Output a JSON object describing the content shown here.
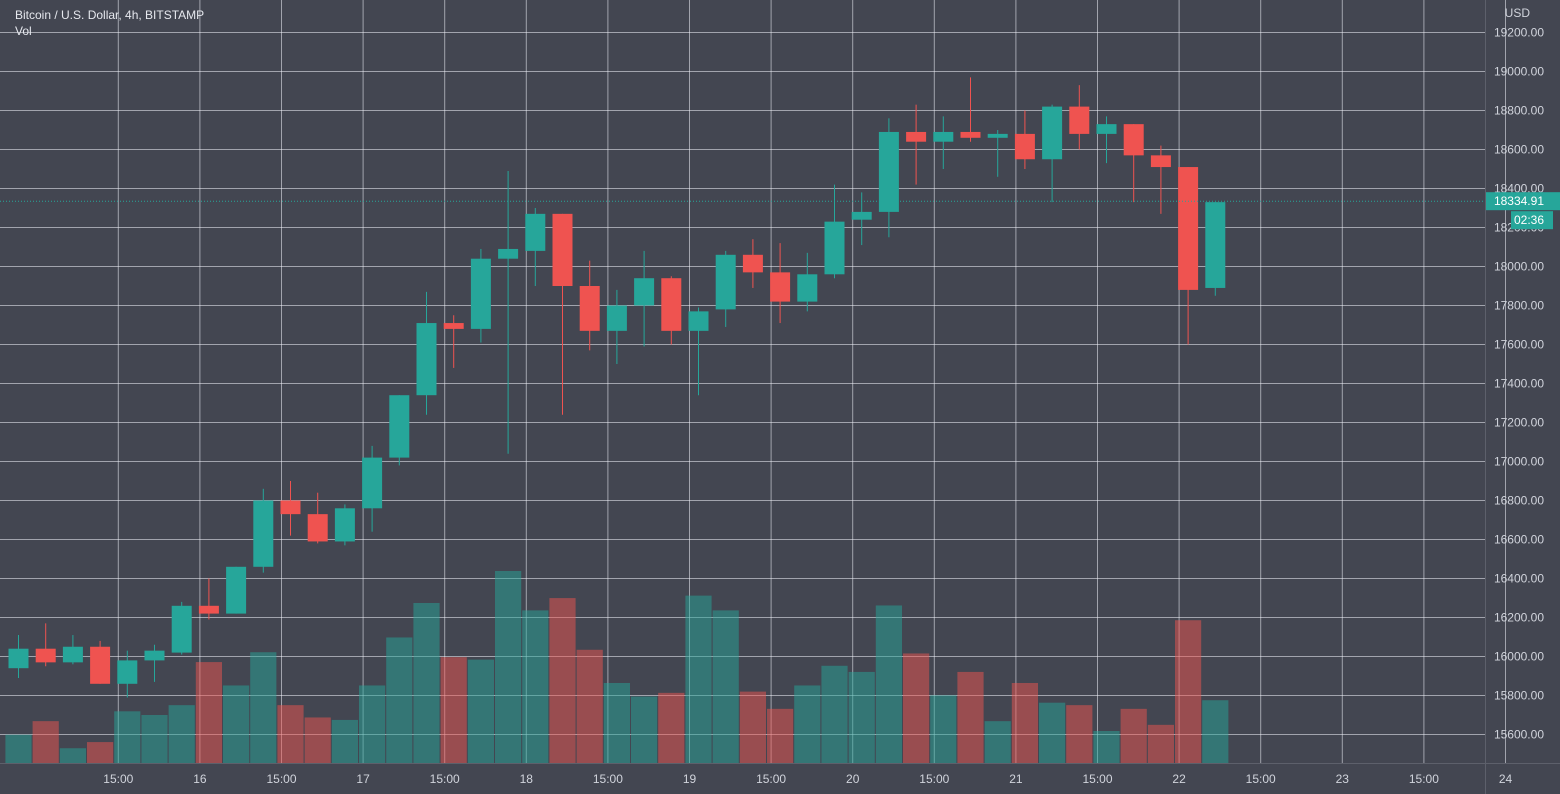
{
  "chart_data": {
    "type": "candlestick",
    "title": "Bitcoin / U.S. Dollar, 4h, BITSTAMP",
    "volume_label": "Vol",
    "currency": "USD",
    "ylim": [
      15480,
      19340
    ],
    "y_ticks": [
      15600,
      15800,
      16000,
      16200,
      16400,
      16600,
      16800,
      17000,
      17200,
      17400,
      17600,
      17800,
      18000,
      18200,
      18400,
      18600,
      18800,
      19000,
      19200
    ],
    "y_tick_labels": [
      "15600.00",
      "15800.00",
      "16000.00",
      "16200.00",
      "16400.00",
      "16600.00",
      "16800.00",
      "17000.00",
      "17200.00",
      "17400.00",
      "17600.00",
      "17800.00",
      "18000.00",
      "18200.00",
      "18400.00",
      "18600.00",
      "18800.00",
      "19000.00",
      "19200.00"
    ],
    "x_labels": [
      {
        "label": "15:00",
        "slot": 2
      },
      {
        "label": "16",
        "slot": 5
      },
      {
        "label": "15:00",
        "slot": 8
      },
      {
        "label": "17",
        "slot": 11
      },
      {
        "label": "15:00",
        "slot": 14
      },
      {
        "label": "18",
        "slot": 17
      },
      {
        "label": "15:00",
        "slot": 20
      },
      {
        "label": "19",
        "slot": 23
      },
      {
        "label": "15:00",
        "slot": 26
      },
      {
        "label": "20",
        "slot": 29
      },
      {
        "label": "15:00",
        "slot": 32
      },
      {
        "label": "21",
        "slot": 35
      },
      {
        "label": "15:00",
        "slot": 38
      },
      {
        "label": "22",
        "slot": 41
      },
      {
        "label": "15:00",
        "slot": 44
      },
      {
        "label": "23",
        "slot": 47
      },
      {
        "label": "15:00",
        "slot": 50
      },
      {
        "label": "24",
        "slot": 53
      }
    ],
    "last_price": "18334.91",
    "countdown": "02:36",
    "up_color": "#26a69a",
    "down_color": "#ef5350",
    "candles": [
      {
        "o": 15940,
        "h": 16110,
        "l": 15890,
        "c": 16040,
        "v": 115
      },
      {
        "o": 16040,
        "h": 16170,
        "l": 15950,
        "c": 15970,
        "v": 170
      },
      {
        "o": 15970,
        "h": 16110,
        "l": 15960,
        "c": 16050,
        "v": 60
      },
      {
        "o": 16050,
        "h": 16080,
        "l": 15860,
        "c": 15860,
        "v": 85
      },
      {
        "o": 15860,
        "h": 16030,
        "l": 15790,
        "c": 15980,
        "v": 210
      },
      {
        "o": 15980,
        "h": 16060,
        "l": 15870,
        "c": 16030,
        "v": 195
      },
      {
        "o": 16020,
        "h": 16280,
        "l": 16010,
        "c": 16260,
        "v": 235
      },
      {
        "o": 16260,
        "h": 16400,
        "l": 16190,
        "c": 16220,
        "v": 410
      },
      {
        "o": 16220,
        "h": 16460,
        "l": 16220,
        "c": 16460,
        "v": 315
      },
      {
        "o": 16460,
        "h": 16860,
        "l": 16430,
        "c": 16800,
        "v": 450
      },
      {
        "o": 16800,
        "h": 16900,
        "l": 16620,
        "c": 16730,
        "v": 235
      },
      {
        "o": 16730,
        "h": 16840,
        "l": 16580,
        "c": 16590,
        "v": 185
      },
      {
        "o": 16590,
        "h": 16780,
        "l": 16570,
        "c": 16760,
        "v": 175
      },
      {
        "o": 16760,
        "h": 17080,
        "l": 16640,
        "c": 17020,
        "v": 315
      },
      {
        "o": 17020,
        "h": 17340,
        "l": 16980,
        "c": 17340,
        "v": 510
      },
      {
        "o": 17340,
        "h": 17870,
        "l": 17240,
        "c": 17710,
        "v": 650
      },
      {
        "o": 17710,
        "h": 17750,
        "l": 17480,
        "c": 17680,
        "v": 430
      },
      {
        "o": 17680,
        "h": 18090,
        "l": 17610,
        "c": 18040,
        "v": 420
      },
      {
        "o": 18040,
        "h": 18490,
        "l": 17040,
        "c": 18090,
        "v": 780
      },
      {
        "o": 18080,
        "h": 18300,
        "l": 17900,
        "c": 18270,
        "v": 620
      },
      {
        "o": 18270,
        "h": 18270,
        "l": 17240,
        "c": 17900,
        "v": 670
      },
      {
        "o": 17900,
        "h": 18030,
        "l": 17570,
        "c": 17670,
        "v": 460
      },
      {
        "o": 17670,
        "h": 17880,
        "l": 17500,
        "c": 17800,
        "v": 325
      },
      {
        "o": 17800,
        "h": 18080,
        "l": 17590,
        "c": 17940,
        "v": 270
      },
      {
        "o": 17940,
        "h": 17950,
        "l": 17600,
        "c": 17670,
        "v": 285
      },
      {
        "o": 17670,
        "h": 17790,
        "l": 17340,
        "c": 17770,
        "v": 680
      },
      {
        "o": 17780,
        "h": 18080,
        "l": 17690,
        "c": 18060,
        "v": 620
      },
      {
        "o": 18060,
        "h": 18140,
        "l": 17890,
        "c": 17970,
        "v": 290
      },
      {
        "o": 17970,
        "h": 18120,
        "l": 17710,
        "c": 17820,
        "v": 220
      },
      {
        "o": 17820,
        "h": 18070,
        "l": 17770,
        "c": 17960,
        "v": 315
      },
      {
        "o": 17960,
        "h": 18420,
        "l": 17940,
        "c": 18230,
        "v": 395
      },
      {
        "o": 18240,
        "h": 18380,
        "l": 18110,
        "c": 18280,
        "v": 370
      },
      {
        "o": 18280,
        "h": 18760,
        "l": 18150,
        "c": 18690,
        "v": 640
      },
      {
        "o": 18690,
        "h": 18830,
        "l": 18420,
        "c": 18640,
        "v": 445
      },
      {
        "o": 18640,
        "h": 18770,
        "l": 18500,
        "c": 18690,
        "v": 275
      },
      {
        "o": 18690,
        "h": 18970,
        "l": 18640,
        "c": 18660,
        "v": 370
      },
      {
        "o": 18660,
        "h": 18700,
        "l": 18460,
        "c": 18680,
        "v": 170
      },
      {
        "o": 18680,
        "h": 18800,
        "l": 18500,
        "c": 18550,
        "v": 325
      },
      {
        "o": 18550,
        "h": 18830,
        "l": 18330,
        "c": 18820,
        "v": 245
      },
      {
        "o": 18820,
        "h": 18930,
        "l": 18600,
        "c": 18680,
        "v": 235
      },
      {
        "o": 18680,
        "h": 18770,
        "l": 18530,
        "c": 18730,
        "v": 130
      },
      {
        "o": 18730,
        "h": 18730,
        "l": 18330,
        "c": 18570,
        "v": 220
      },
      {
        "o": 18570,
        "h": 18620,
        "l": 18270,
        "c": 18510,
        "v": 155
      },
      {
        "o": 18510,
        "h": 18510,
        "l": 17600,
        "c": 17880,
        "v": 580
      },
      {
        "o": 17890,
        "h": 18330,
        "l": 17850,
        "c": 18330,
        "v": 255
      }
    ]
  }
}
